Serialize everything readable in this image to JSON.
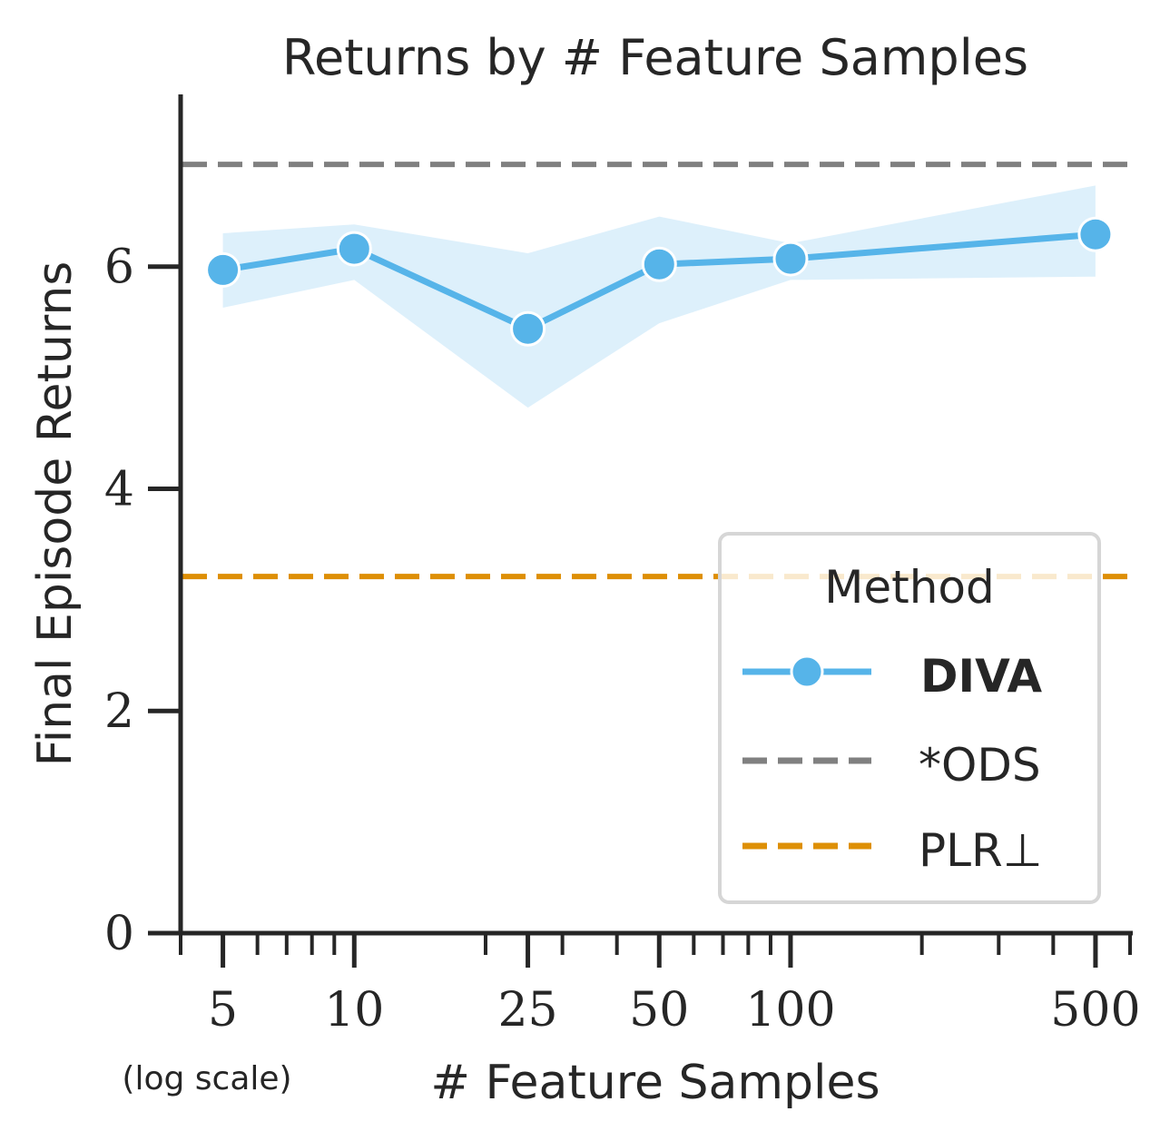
{
  "chart_data": {
    "type": "line",
    "title": "Returns by # Feature Samples",
    "xlabel": "# Feature Samples",
    "x_note": "(log scale)",
    "ylabel": "Final Episode Returns",
    "x_scale": "log",
    "x": [
      5,
      10,
      25,
      50,
      100,
      500
    ],
    "xticks": [
      "5",
      "10",
      "25",
      "50",
      "100",
      "500"
    ],
    "xlim": [
      4,
      600
    ],
    "yticks": [
      "0",
      "2",
      "4",
      "6"
    ],
    "ylim": [
      0,
      7.55
    ],
    "grid": false,
    "series": [
      {
        "name": "DIVA",
        "values": [
          5.97,
          6.16,
          5.44,
          6.02,
          6.07,
          6.29
        ],
        "lower": [
          5.63,
          5.88,
          4.73,
          5.49,
          5.88,
          5.91
        ],
        "upper": [
          6.3,
          6.38,
          6.12,
          6.45,
          6.21,
          6.73
        ],
        "color": "#56b4e9",
        "marker": "circle",
        "style": "solid"
      }
    ],
    "reference_lines": [
      {
        "name": "*ODS",
        "value": 6.92,
        "color": "#808080",
        "style": "dashed"
      },
      {
        "name": "PLR⊥",
        "value": 3.21,
        "color": "#de8f05",
        "style": "dashed"
      }
    ],
    "legend": {
      "title": "Method",
      "placement": "lower-right",
      "entries": [
        "DIVA",
        "*ODS",
        "PLR⊥"
      ]
    }
  }
}
